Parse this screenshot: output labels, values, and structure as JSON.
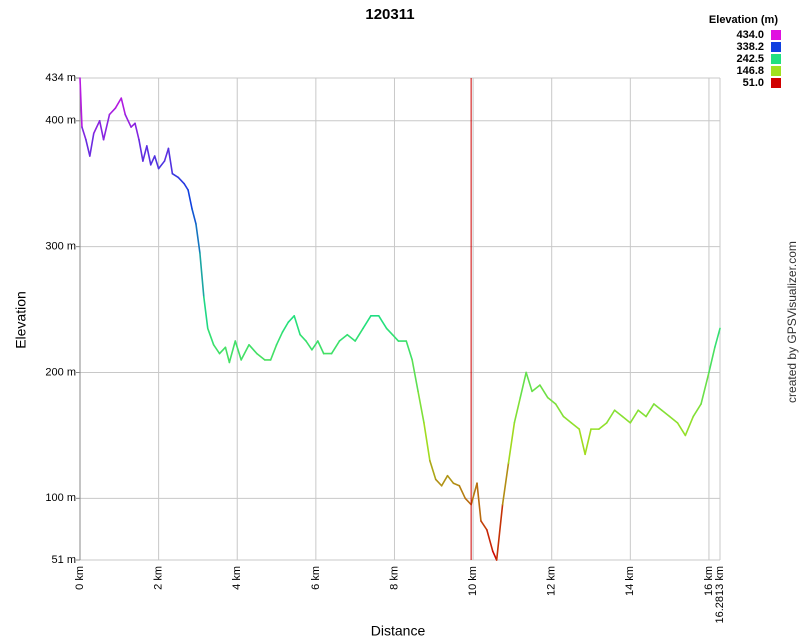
{
  "chart_data": {
    "type": "line",
    "title": "120311",
    "x_label": "Distance",
    "y_label": "Elevation",
    "credit": "created by GPSVisualizer.com",
    "legend_title": "Elevation (m)",
    "legend": [
      {
        "value": 434.0,
        "label": "434.0",
        "color": "#e010e0"
      },
      {
        "value": 338.2,
        "label": "338.2",
        "color": "#1040e0"
      },
      {
        "value": 242.5,
        "label": "242.5",
        "color": "#20e080"
      },
      {
        "value": 146.8,
        "label": "146.8",
        "color": "#a0e020"
      },
      {
        "value": 51.0,
        "label": "51.0",
        "color": "#d00000"
      }
    ],
    "grid": true,
    "xlim": [
      0,
      16.2813
    ],
    "ylim": [
      51,
      434
    ],
    "xticks": [
      {
        "value": 0,
        "label": "0 km"
      },
      {
        "value": 2,
        "label": "2 km"
      },
      {
        "value": 4,
        "label": "4 km"
      },
      {
        "value": 6,
        "label": "6 km"
      },
      {
        "value": 8,
        "label": "8 km"
      },
      {
        "value": 10,
        "label": "10 km"
      },
      {
        "value": 12,
        "label": "12 km"
      },
      {
        "value": 14,
        "label": "14 km"
      },
      {
        "value": 16,
        "label": "16 km"
      },
      {
        "value": 16.2813,
        "label": "16.2813 km"
      }
    ],
    "yticks": [
      {
        "value": 51,
        "label": "51 m"
      },
      {
        "value": 100,
        "label": "100 m"
      },
      {
        "value": 200,
        "label": "200 m"
      },
      {
        "value": 300,
        "label": "300 m"
      },
      {
        "value": 400,
        "label": "400 m"
      },
      {
        "value": 434,
        "label": "434 m"
      }
    ],
    "marker": {
      "x": 9.95,
      "color": "#cc0000"
    },
    "series": [
      {
        "x": [
          0,
          0.05,
          0.15,
          0.25,
          0.35,
          0.5,
          0.6,
          0.75,
          0.9,
          1.05,
          1.15,
          1.3,
          1.4,
          1.5,
          1.6,
          1.7,
          1.8,
          1.9,
          2.0,
          2.15,
          2.25,
          2.35,
          2.5,
          2.65,
          2.75,
          2.85,
          2.95,
          3.05,
          3.15,
          3.25,
          3.4,
          3.55,
          3.7,
          3.8,
          3.95,
          4.1,
          4.3,
          4.5,
          4.7,
          4.85,
          5.0,
          5.15,
          5.3,
          5.45,
          5.6,
          5.75,
          5.9,
          6.05,
          6.2,
          6.4,
          6.6,
          6.8,
          7.0,
          7.2,
          7.4,
          7.6,
          7.8,
          7.95,
          8.1,
          8.3,
          8.45,
          8.6,
          8.75,
          8.9,
          9.05,
          9.2,
          9.35,
          9.5,
          9.65,
          9.8,
          9.95,
          10.1,
          10.2,
          10.35,
          10.5,
          10.6,
          10.75,
          10.9,
          11.05,
          11.2,
          11.35,
          11.5,
          11.7,
          11.9,
          12.1,
          12.3,
          12.5,
          12.7,
          12.85,
          13.0,
          13.2,
          13.4,
          13.6,
          13.8,
          14.0,
          14.2,
          14.4,
          14.6,
          14.8,
          15.0,
          15.2,
          15.4,
          15.6,
          15.8,
          16.0,
          16.15,
          16.2813
        ],
        "values": [
          434,
          395,
          385,
          372,
          390,
          400,
          385,
          405,
          410,
          418,
          405,
          395,
          398,
          385,
          368,
          380,
          365,
          372,
          362,
          368,
          378,
          358,
          355,
          350,
          345,
          330,
          318,
          295,
          260,
          235,
          222,
          215,
          220,
          208,
          225,
          210,
          222,
          215,
          210,
          210,
          222,
          232,
          240,
          245,
          230,
          225,
          218,
          225,
          215,
          215,
          225,
          230,
          225,
          235,
          245,
          245,
          235,
          230,
          225,
          225,
          210,
          185,
          160,
          130,
          115,
          110,
          118,
          112,
          110,
          100,
          95,
          112,
          82,
          75,
          58,
          51,
          95,
          128,
          160,
          180,
          200,
          185,
          190,
          180,
          175,
          165,
          160,
          155,
          135,
          155,
          155,
          160,
          170,
          165,
          160,
          170,
          165,
          175,
          170,
          165,
          160,
          150,
          165,
          175,
          200,
          220,
          235
        ]
      }
    ]
  }
}
